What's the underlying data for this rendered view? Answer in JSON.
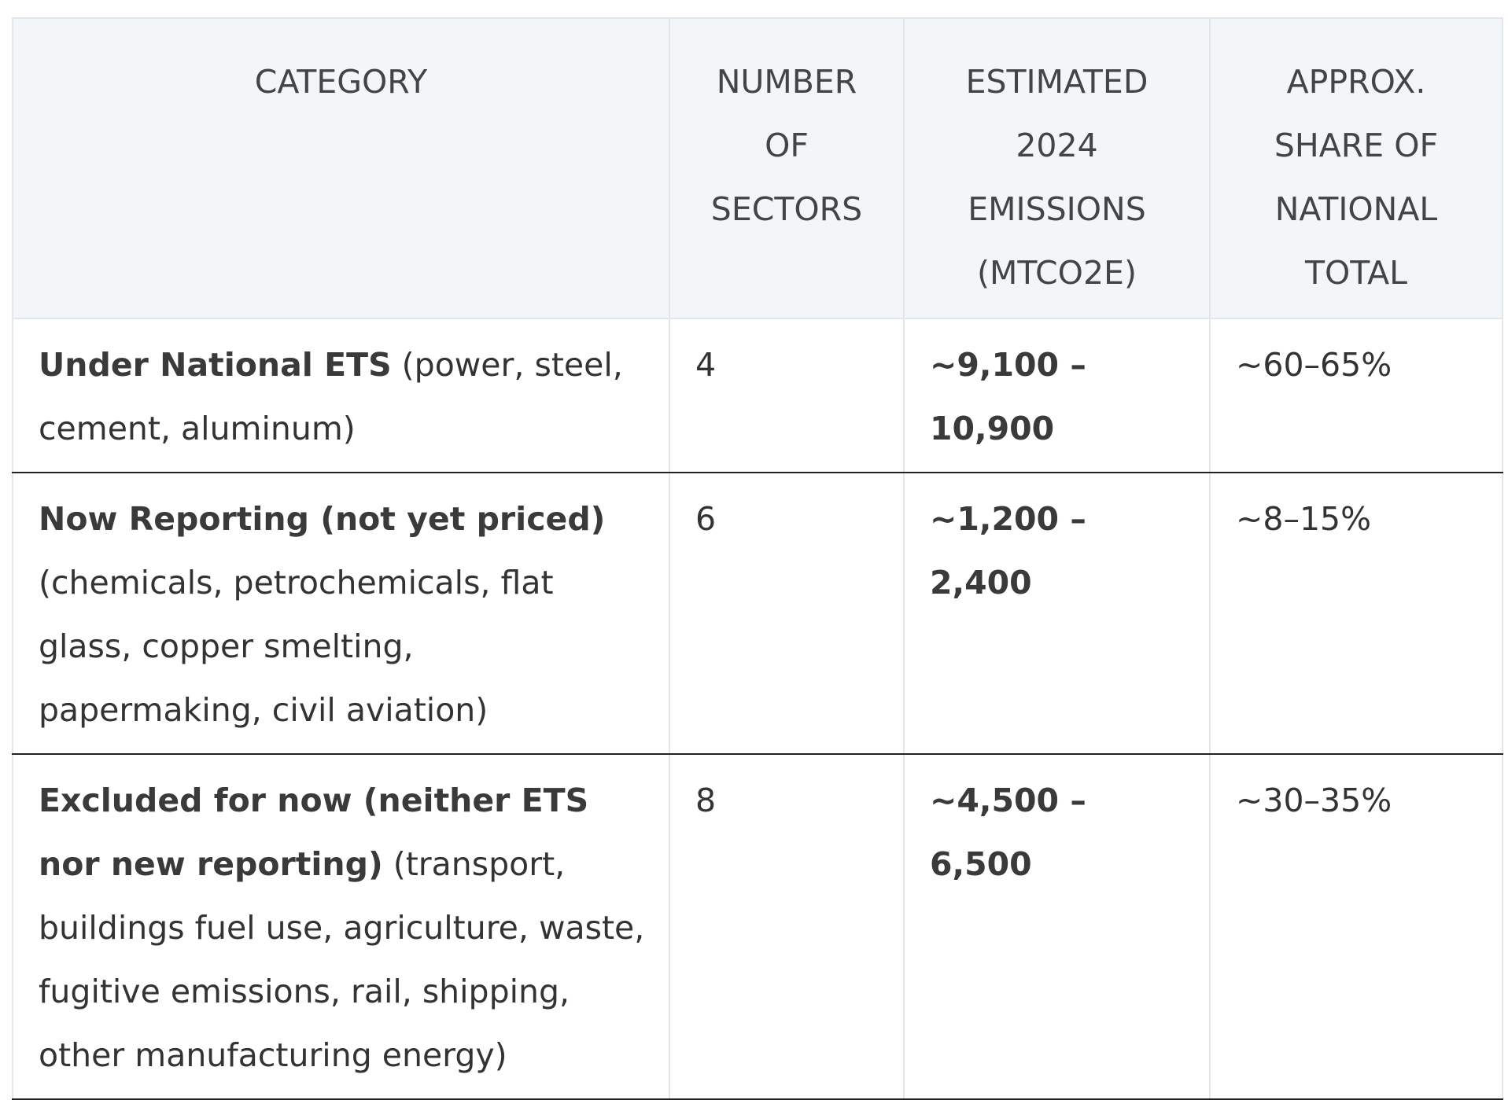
{
  "table": {
    "headers": [
      "CATEGORY",
      "NUMBER OF SECTORS",
      "ESTIMATED 2024 EMISSIONS (MTCO2E)",
      "APPROX. SHARE OF NATIONAL TOTAL"
    ],
    "rows": [
      {
        "category_bold": "Under National ETS",
        "category_note": "(power, steel, cement, aluminum)",
        "sectors": "4",
        "emissions": "~9,100 – 10,900",
        "share": "~60–65%"
      },
      {
        "category_bold": "Now Reporting (not yet priced)",
        "category_note": "(chemicals, petrochemicals, flat glass, copper smelting, papermaking, civil aviation)",
        "sectors": "6",
        "emissions": "~1,200 – 2,400",
        "share": "~8–15%"
      },
      {
        "category_bold": "Excluded for now (neither ETS nor new reporting)",
        "category_note": "(transport, buildings fuel use, agriculture, waste, fugitive emissions, rail, shipping, other manufacturing energy)",
        "sectors": "8",
        "emissions": "~4,500 – 6,500",
        "share": "~30–35%"
      }
    ]
  }
}
